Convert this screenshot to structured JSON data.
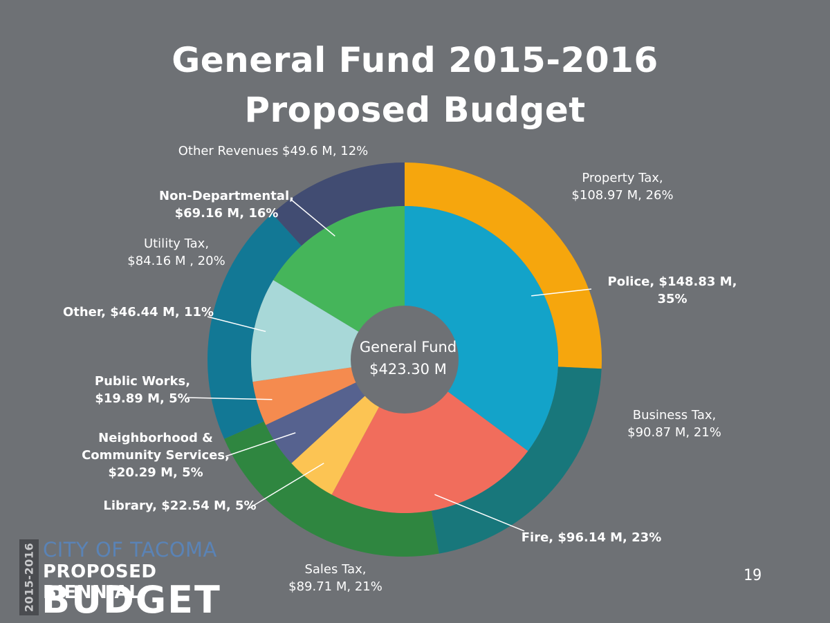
{
  "title_line1": "General Fund 2015-2016",
  "title_line2": "Proposed Budget",
  "page_number": "19",
  "logo": {
    "years": "2015-2016",
    "city": "CITY OF TACOMA",
    "line2": "PROPOSED BIENNIAL",
    "line3": "BUDGET"
  },
  "colors": {
    "background": "#6e7175",
    "center_hole": "#6e7175",
    "leader": "#ffffff"
  },
  "chart_data": {
    "type": "pie",
    "subtype": "nested donut",
    "center_label": "General Fund",
    "center_value": "$423.30 M",
    "inner_ring": {
      "categories": [
        "Police",
        "Fire",
        "Library",
        "Neighborhood & Community Services",
        "Public Works",
        "Other",
        "Non-Departmental"
      ],
      "values": [
        148.83,
        96.14,
        22.54,
        20.29,
        19.89,
        46.44,
        69.16
      ],
      "percents": [
        35,
        23,
        5,
        5,
        5,
        11,
        16
      ],
      "colors": [
        "#13a3c9",
        "#f16d5c",
        "#fcc453",
        "#56628f",
        "#f58b4f",
        "#a8d8d8",
        "#45b55a"
      ],
      "labels": [
        "Police, $148.83 M,\n35%",
        "Fire, $96.14 M, 23%",
        "Library, $22.54 M, 5%",
        "Neighborhood &\nCommunity Services,\n$20.29 M, 5%",
        "Public Works,\n$19.89 M, 5%",
        "Other, $46.44 M, 11%",
        "Non-Departmental,\n$69.16 M, 16%"
      ]
    },
    "outer_ring": {
      "categories": [
        "Property Tax",
        "Business Tax",
        "Sales Tax",
        "Utility Tax",
        "Other Revenues"
      ],
      "values": [
        108.97,
        90.87,
        89.71,
        84.16,
        49.6
      ],
      "percents": [
        26,
        21,
        21,
        20,
        12
      ],
      "colors": [
        "#f6a60d",
        "#18777b",
        "#2f8640",
        "#127895",
        "#414c72"
      ],
      "labels": [
        "Property Tax,\n$108.97 M, 26%",
        "Business Tax,\n$90.87 M, 21%",
        "Sales Tax,\n$89.71 M, 21%",
        "Utility Tax,\n$84.16 M , 20%",
        "Other Revenues $49.6 M, 12%"
      ]
    }
  }
}
